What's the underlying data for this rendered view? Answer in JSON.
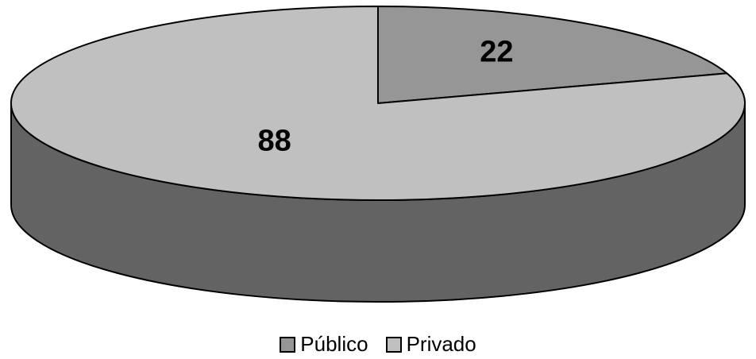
{
  "chart_data": {
    "type": "pie",
    "categories": [
      "Público",
      "Privado"
    ],
    "values": [
      22,
      88
    ],
    "data_labels": [
      "22",
      "88"
    ],
    "colors": [
      "#969696",
      "#c0c0c0"
    ],
    "side_color": "#636363",
    "legend_position": "bottom",
    "three_d": true
  },
  "legend": {
    "items": [
      {
        "label": "Público",
        "color": "#969696"
      },
      {
        "label": "Privado",
        "color": "#c0c0c0"
      }
    ]
  }
}
